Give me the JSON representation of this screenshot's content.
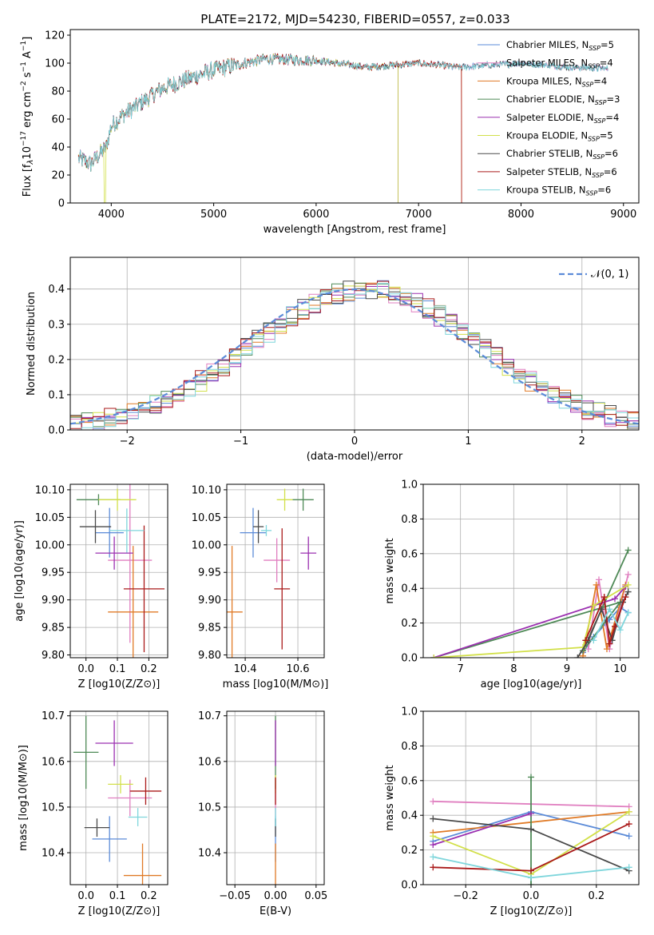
{
  "figure_title": "PLATE=2172, MJD=54230, FIBERID=0557, z=0.033",
  "colors": {
    "Chabrier MILES": "#5b8bd8",
    "Salpeter MILES": "#e07fc0",
    "Kroupa MILES": "#e07a26",
    "Chabrier ELODIE": "#4f8a57",
    "Salpeter ELODIE": "#9b30b0",
    "Kroupa ELODIE": "#d2e04a",
    "Chabrier STELIB": "#4a4a4a",
    "Salpeter STELIB": "#aa1a1a",
    "Kroupa STELIB": "#7fd6dc"
  },
  "chart_data": [
    {
      "id": "spectrum",
      "type": "line",
      "xlabel": "wavelength [Angstrom, rest frame]",
      "ylabel": "Flux [f_λ10^-17 erg cm^-2 s^-1 A^-1]",
      "xlim": [
        3600,
        9150
      ],
      "ylim": [
        0,
        124
      ],
      "xticks": [
        4000,
        5000,
        6000,
        7000,
        8000,
        9000
      ],
      "yticks": [
        0,
        20,
        40,
        60,
        80,
        100,
        120
      ],
      "legend_position": "top-right",
      "series": [
        {
          "name": "Chabrier MILES, N_SSP=5",
          "x_range": [
            3680,
            8850
          ]
        },
        {
          "name": "Salpeter MILES, N_SSP=4",
          "x_range": [
            3680,
            8850
          ]
        },
        {
          "name": "Kroupa MILES, N_SSP=4",
          "x_range": [
            3680,
            7420
          ]
        },
        {
          "name": "Chabrier ELODIE, N_SSP=3",
          "x_range": [
            3680,
            6800
          ]
        },
        {
          "name": "Salpeter ELODIE, N_SSP=4",
          "x_range": [
            3680,
            6800
          ]
        },
        {
          "name": "Kroupa ELODIE, N_SSP=5",
          "x_range": [
            3680,
            6800
          ]
        },
        {
          "name": "Chabrier STELIB, N_SSP=6",
          "x_range": [
            3680,
            8850
          ]
        },
        {
          "name": "Salpeter STELIB, N_SSP=6",
          "x_range": [
            3680,
            7420
          ]
        },
        {
          "name": "Kroupa STELIB, N_SSP=6",
          "x_range": [
            3680,
            8850
          ]
        }
      ],
      "continuum": [
        [
          3680,
          32
        ],
        [
          3800,
          28
        ],
        [
          3950,
          40
        ],
        [
          4000,
          55
        ],
        [
          4100,
          62
        ],
        [
          4300,
          72
        ],
        [
          4500,
          82
        ],
        [
          4800,
          90
        ],
        [
          5000,
          95
        ],
        [
          5300,
          100
        ],
        [
          5500,
          103
        ],
        [
          6000,
          102
        ],
        [
          6500,
          97
        ],
        [
          7000,
          100
        ],
        [
          7400,
          97
        ],
        [
          7600,
          98
        ],
        [
          8000,
          100
        ],
        [
          8500,
          97
        ],
        [
          8850,
          96
        ]
      ]
    },
    {
      "id": "residuals",
      "type": "histogram",
      "xlabel": "(data-model)/error",
      "ylabel": "Normed distribution",
      "xlim": [
        -2.5,
        2.5
      ],
      "ylim": [
        0,
        0.49
      ],
      "xticks": [
        -2,
        -1,
        0,
        1,
        2
      ],
      "yticks": [
        0.0,
        0.1,
        0.2,
        0.3,
        0.4
      ],
      "grid": true,
      "bin_edges": [
        -2.5,
        2.5
      ],
      "n_bins": 50,
      "reference_curve": {
        "name": "N(0,1)",
        "label": "𝒩(0, 1)",
        "style": "dashed"
      },
      "legend_position": "top-right"
    },
    {
      "id": "age_vs_Z",
      "type": "scatter",
      "xlabel": "Z [log10(Z/Z⊙)]",
      "ylabel": "age [log10(age/yr)]",
      "xlim": [
        -0.05,
        0.26
      ],
      "ylim": [
        9.795,
        10.11
      ],
      "xticks": [
        0.0,
        0.1,
        0.2
      ],
      "yticks": [
        9.8,
        9.85,
        9.9,
        9.95,
        10.0,
        10.05,
        10.1
      ],
      "grid": true,
      "points": [
        {
          "series": "Chabrier MILES",
          "x": 0.075,
          "y": 10.022,
          "xerr": 0.045,
          "yerr": 0.045
        },
        {
          "series": "Salpeter MILES",
          "x": 0.14,
          "y": 9.972,
          "xerr": 0.07,
          "yerr": 0.15
        },
        {
          "series": "Kroupa MILES",
          "x": 0.15,
          "y": 9.878,
          "xerr": 0.08,
          "yerr": 0.12
        },
        {
          "series": "Chabrier ELODIE",
          "x": 0.04,
          "y": 10.082,
          "xerr": 0.07,
          "yerr": 0.01
        },
        {
          "series": "Salpeter ELODIE",
          "x": 0.09,
          "y": 9.985,
          "xerr": 0.06,
          "yerr": 0.03
        },
        {
          "series": "Kroupa ELODIE",
          "x": 0.1,
          "y": 10.082,
          "xerr": 0.06,
          "yerr": 0.02
        },
        {
          "series": "Chabrier STELIB",
          "x": 0.03,
          "y": 10.033,
          "xerr": 0.05,
          "yerr": 0.03
        },
        {
          "series": "Salpeter STELIB",
          "x": 0.185,
          "y": 9.92,
          "xerr": 0.065,
          "yerr": 0.115
        },
        {
          "series": "Kroupa STELIB",
          "x": 0.13,
          "y": 10.026,
          "xerr": 0.055,
          "yerr": 0.04
        }
      ]
    },
    {
      "id": "age_vs_mass",
      "type": "scatter",
      "xlabel": "mass [log10(M/M⊙)]",
      "ylabel": "",
      "xlim": [
        10.33,
        10.7
      ],
      "ylim": [
        9.795,
        10.11
      ],
      "xticks": [
        10.4,
        10.6
      ],
      "yticks": [
        9.8,
        9.85,
        9.9,
        9.95,
        10.0,
        10.05,
        10.1
      ],
      "grid": true,
      "points": [
        {
          "series": "Chabrier MILES",
          "x": 10.43,
          "y": 10.022,
          "xerr": 0.05,
          "yerr": 0.045
        },
        {
          "series": "Salpeter MILES",
          "x": 10.52,
          "y": 9.972,
          "xerr": 0.05,
          "yerr": 0.04
        },
        {
          "series": "Kroupa MILES",
          "x": 10.35,
          "y": 9.878,
          "xerr": 0.04,
          "yerr": 0.12
        },
        {
          "series": "Chabrier ELODIE",
          "x": 10.62,
          "y": 10.082,
          "xerr": 0.04,
          "yerr": 0.02
        },
        {
          "series": "Salpeter ELODIE",
          "x": 10.64,
          "y": 9.985,
          "xerr": 0.03,
          "yerr": 0.03
        },
        {
          "series": "Kroupa ELODIE",
          "x": 10.55,
          "y": 10.082,
          "xerr": 0.03,
          "yerr": 0.02
        },
        {
          "series": "Chabrier STELIB",
          "x": 10.45,
          "y": 10.033,
          "xerr": 0.02,
          "yerr": 0.03
        },
        {
          "series": "Salpeter STELIB",
          "x": 10.54,
          "y": 9.92,
          "xerr": 0.03,
          "yerr": 0.11
        },
        {
          "series": "Kroupa STELIB",
          "x": 10.48,
          "y": 10.026,
          "xerr": 0.02,
          "yerr": 0.01
        }
      ]
    },
    {
      "id": "weight_vs_age",
      "type": "line",
      "xlabel": "age [log10(age/yr)]",
      "ylabel": "mass weight",
      "xlim": [
        6.3,
        10.35
      ],
      "ylim": [
        0,
        1.0
      ],
      "xticks": [
        7,
        8,
        9,
        10
      ],
      "yticks": [
        0.0,
        0.2,
        0.4,
        0.6,
        0.8,
        1.0
      ],
      "grid": true,
      "series": [
        {
          "series": "Chabrier MILES",
          "x": [
            9.3,
            9.5,
            9.8,
            10.0,
            10.15
          ],
          "y": [
            0.03,
            0.12,
            0.22,
            0.29,
            0.26
          ]
        },
        {
          "series": "Salpeter MILES",
          "x": [
            9.4,
            9.6,
            9.8,
            10.15
          ],
          "y": [
            0.05,
            0.45,
            0.05,
            0.48
          ]
        },
        {
          "series": "Kroupa MILES",
          "x": [
            9.3,
            9.55,
            9.75,
            10.1
          ],
          "y": [
            0.01,
            0.42,
            0.05,
            0.42
          ]
        },
        {
          "series": "Chabrier ELODIE",
          "x": [
            6.5,
            10.0,
            9.3,
            10.15
          ],
          "y": [
            0.0,
            0.32,
            0.04,
            0.62
          ]
        },
        {
          "series": "Salpeter ELODIE",
          "x": [
            6.5,
            9.9,
            10.1
          ],
          "y": [
            0.0,
            0.34,
            0.41
          ]
        },
        {
          "series": "Kroupa ELODIE",
          "x": [
            6.5,
            9.3,
            9.5,
            10.15
          ],
          "y": [
            0.0,
            0.06,
            0.3,
            0.42
          ]
        },
        {
          "series": "Chabrier STELIB",
          "x": [
            9.2,
            9.4,
            9.65,
            9.85,
            10.05,
            10.15
          ],
          "y": [
            0.0,
            0.1,
            0.28,
            0.1,
            0.32,
            0.38
          ]
        },
        {
          "series": "Salpeter STELIB",
          "x": [
            9.35,
            9.7,
            9.8,
            9.9,
            10.1
          ],
          "y": [
            0.1,
            0.35,
            0.08,
            0.18,
            0.35
          ]
        },
        {
          "series": "Kroupa STELIB",
          "x": [
            9.5,
            9.8,
            10.0,
            10.15
          ],
          "y": [
            0.1,
            0.28,
            0.16,
            0.26
          ]
        }
      ]
    },
    {
      "id": "mass_vs_Z",
      "type": "scatter",
      "xlabel": "Z [log10(Z/Z⊙)]",
      "ylabel": "mass [log10(M/M⊙)]",
      "xlim": [
        -0.05,
        0.26
      ],
      "ylim": [
        10.33,
        10.71
      ],
      "xticks": [
        0.0,
        0.1,
        0.2
      ],
      "yticks": [
        10.4,
        10.5,
        10.6,
        10.7
      ],
      "grid": true,
      "points": [
        {
          "series": "Chabrier MILES",
          "x": 0.075,
          "y": 10.43,
          "xerr": 0.055,
          "yerr": 0.05
        },
        {
          "series": "Salpeter MILES",
          "x": 0.14,
          "y": 10.52,
          "xerr": 0.07,
          "yerr": 0.04
        },
        {
          "series": "Kroupa MILES",
          "x": 0.18,
          "y": 10.35,
          "xerr": 0.06,
          "yerr": 0.07
        },
        {
          "series": "Chabrier ELODIE",
          "x": 0.0,
          "y": 10.62,
          "xerr": 0.04,
          "yerr": 0.08
        },
        {
          "series": "Salpeter ELODIE",
          "x": 0.09,
          "y": 10.64,
          "xerr": 0.06,
          "yerr": 0.05
        },
        {
          "series": "Kroupa ELODIE",
          "x": 0.11,
          "y": 10.55,
          "xerr": 0.04,
          "yerr": 0.02
        },
        {
          "series": "Chabrier STELIB",
          "x": 0.035,
          "y": 10.455,
          "xerr": 0.04,
          "yerr": 0.02
        },
        {
          "series": "Salpeter STELIB",
          "x": 0.19,
          "y": 10.535,
          "xerr": 0.05,
          "yerr": 0.03
        },
        {
          "series": "Kroupa STELIB",
          "x": 0.165,
          "y": 10.478,
          "xerr": 0.03,
          "yerr": 0.02
        }
      ]
    },
    {
      "id": "mass_vs_ebv",
      "type": "scatter",
      "xlabel": "E(B-V)",
      "ylabel": "",
      "xlim": [
        -0.06,
        0.06
      ],
      "ylim": [
        10.33,
        10.71
      ],
      "xticks": [
        -0.05,
        0.0,
        0.05
      ],
      "yticks": [
        10.4,
        10.5,
        10.6,
        10.7
      ],
      "grid": true,
      "points": [
        {
          "series": "Chabrier MILES",
          "x": 0.0,
          "y": 10.43,
          "xerr": 0.0,
          "yerr": 0.05
        },
        {
          "series": "Salpeter MILES",
          "x": 0.0,
          "y": 10.52,
          "xerr": 0.0,
          "yerr": 0.04
        },
        {
          "series": "Kroupa MILES",
          "x": 0.0,
          "y": 10.35,
          "xerr": 0.0,
          "yerr": 0.07
        },
        {
          "series": "Chabrier ELODIE",
          "x": 0.0,
          "y": 10.62,
          "xerr": 0.0,
          "yerr": 0.08
        },
        {
          "series": "Salpeter ELODIE",
          "x": 0.0,
          "y": 10.64,
          "xerr": 0.0,
          "yerr": 0.05
        },
        {
          "series": "Kroupa ELODIE",
          "x": 0.0,
          "y": 10.55,
          "xerr": 0.0,
          "yerr": 0.02
        },
        {
          "series": "Chabrier STELIB",
          "x": 0.0,
          "y": 10.455,
          "xerr": 0.0,
          "yerr": 0.02
        },
        {
          "series": "Salpeter STELIB",
          "x": 0.0,
          "y": 10.535,
          "xerr": 0.0,
          "yerr": 0.03
        },
        {
          "series": "Kroupa STELIB",
          "x": 0.0,
          "y": 10.478,
          "xerr": 0.0,
          "yerr": 0.02
        }
      ]
    },
    {
      "id": "weight_vs_Z",
      "type": "line",
      "xlabel": "Z [log10(Z/Z⊙)]",
      "ylabel": "mass weight",
      "xlim": [
        -0.33,
        0.33
      ],
      "ylim": [
        0,
        1.0
      ],
      "xticks": [
        -0.2,
        0.0,
        0.2
      ],
      "yticks": [
        0.0,
        0.2,
        0.4,
        0.6,
        0.8,
        1.0
      ],
      "grid": true,
      "series": [
        {
          "series": "Chabrier MILES",
          "x": [
            -0.3,
            0.0,
            0.3
          ],
          "y": [
            0.25,
            0.42,
            0.28
          ]
        },
        {
          "series": "Salpeter MILES",
          "x": [
            -0.3,
            0.3
          ],
          "y": [
            0.48,
            0.45
          ]
        },
        {
          "series": "Kroupa MILES",
          "x": [
            -0.3,
            0.3
          ],
          "y": [
            0.3,
            0.42
          ]
        },
        {
          "series": "Chabrier ELODIE",
          "x": [
            0.0,
            0.0
          ],
          "y": [
            0.0,
            0.62
          ]
        },
        {
          "series": "Salpeter ELODIE",
          "x": [
            -0.3,
            0.0
          ],
          "y": [
            0.23,
            0.41
          ]
        },
        {
          "series": "Kroupa ELODIE",
          "x": [
            -0.3,
            0.0,
            0.3
          ],
          "y": [
            0.28,
            0.06,
            0.42
          ]
        },
        {
          "series": "Chabrier STELIB",
          "x": [
            -0.3,
            0.0,
            0.3
          ],
          "y": [
            0.38,
            0.32,
            0.08
          ]
        },
        {
          "series": "Salpeter STELIB",
          "x": [
            -0.3,
            0.0,
            0.3
          ],
          "y": [
            0.1,
            0.08,
            0.35
          ]
        },
        {
          "series": "Kroupa STELIB",
          "x": [
            -0.3,
            0.0,
            0.3
          ],
          "y": [
            0.16,
            0.04,
            0.1
          ]
        }
      ]
    }
  ]
}
